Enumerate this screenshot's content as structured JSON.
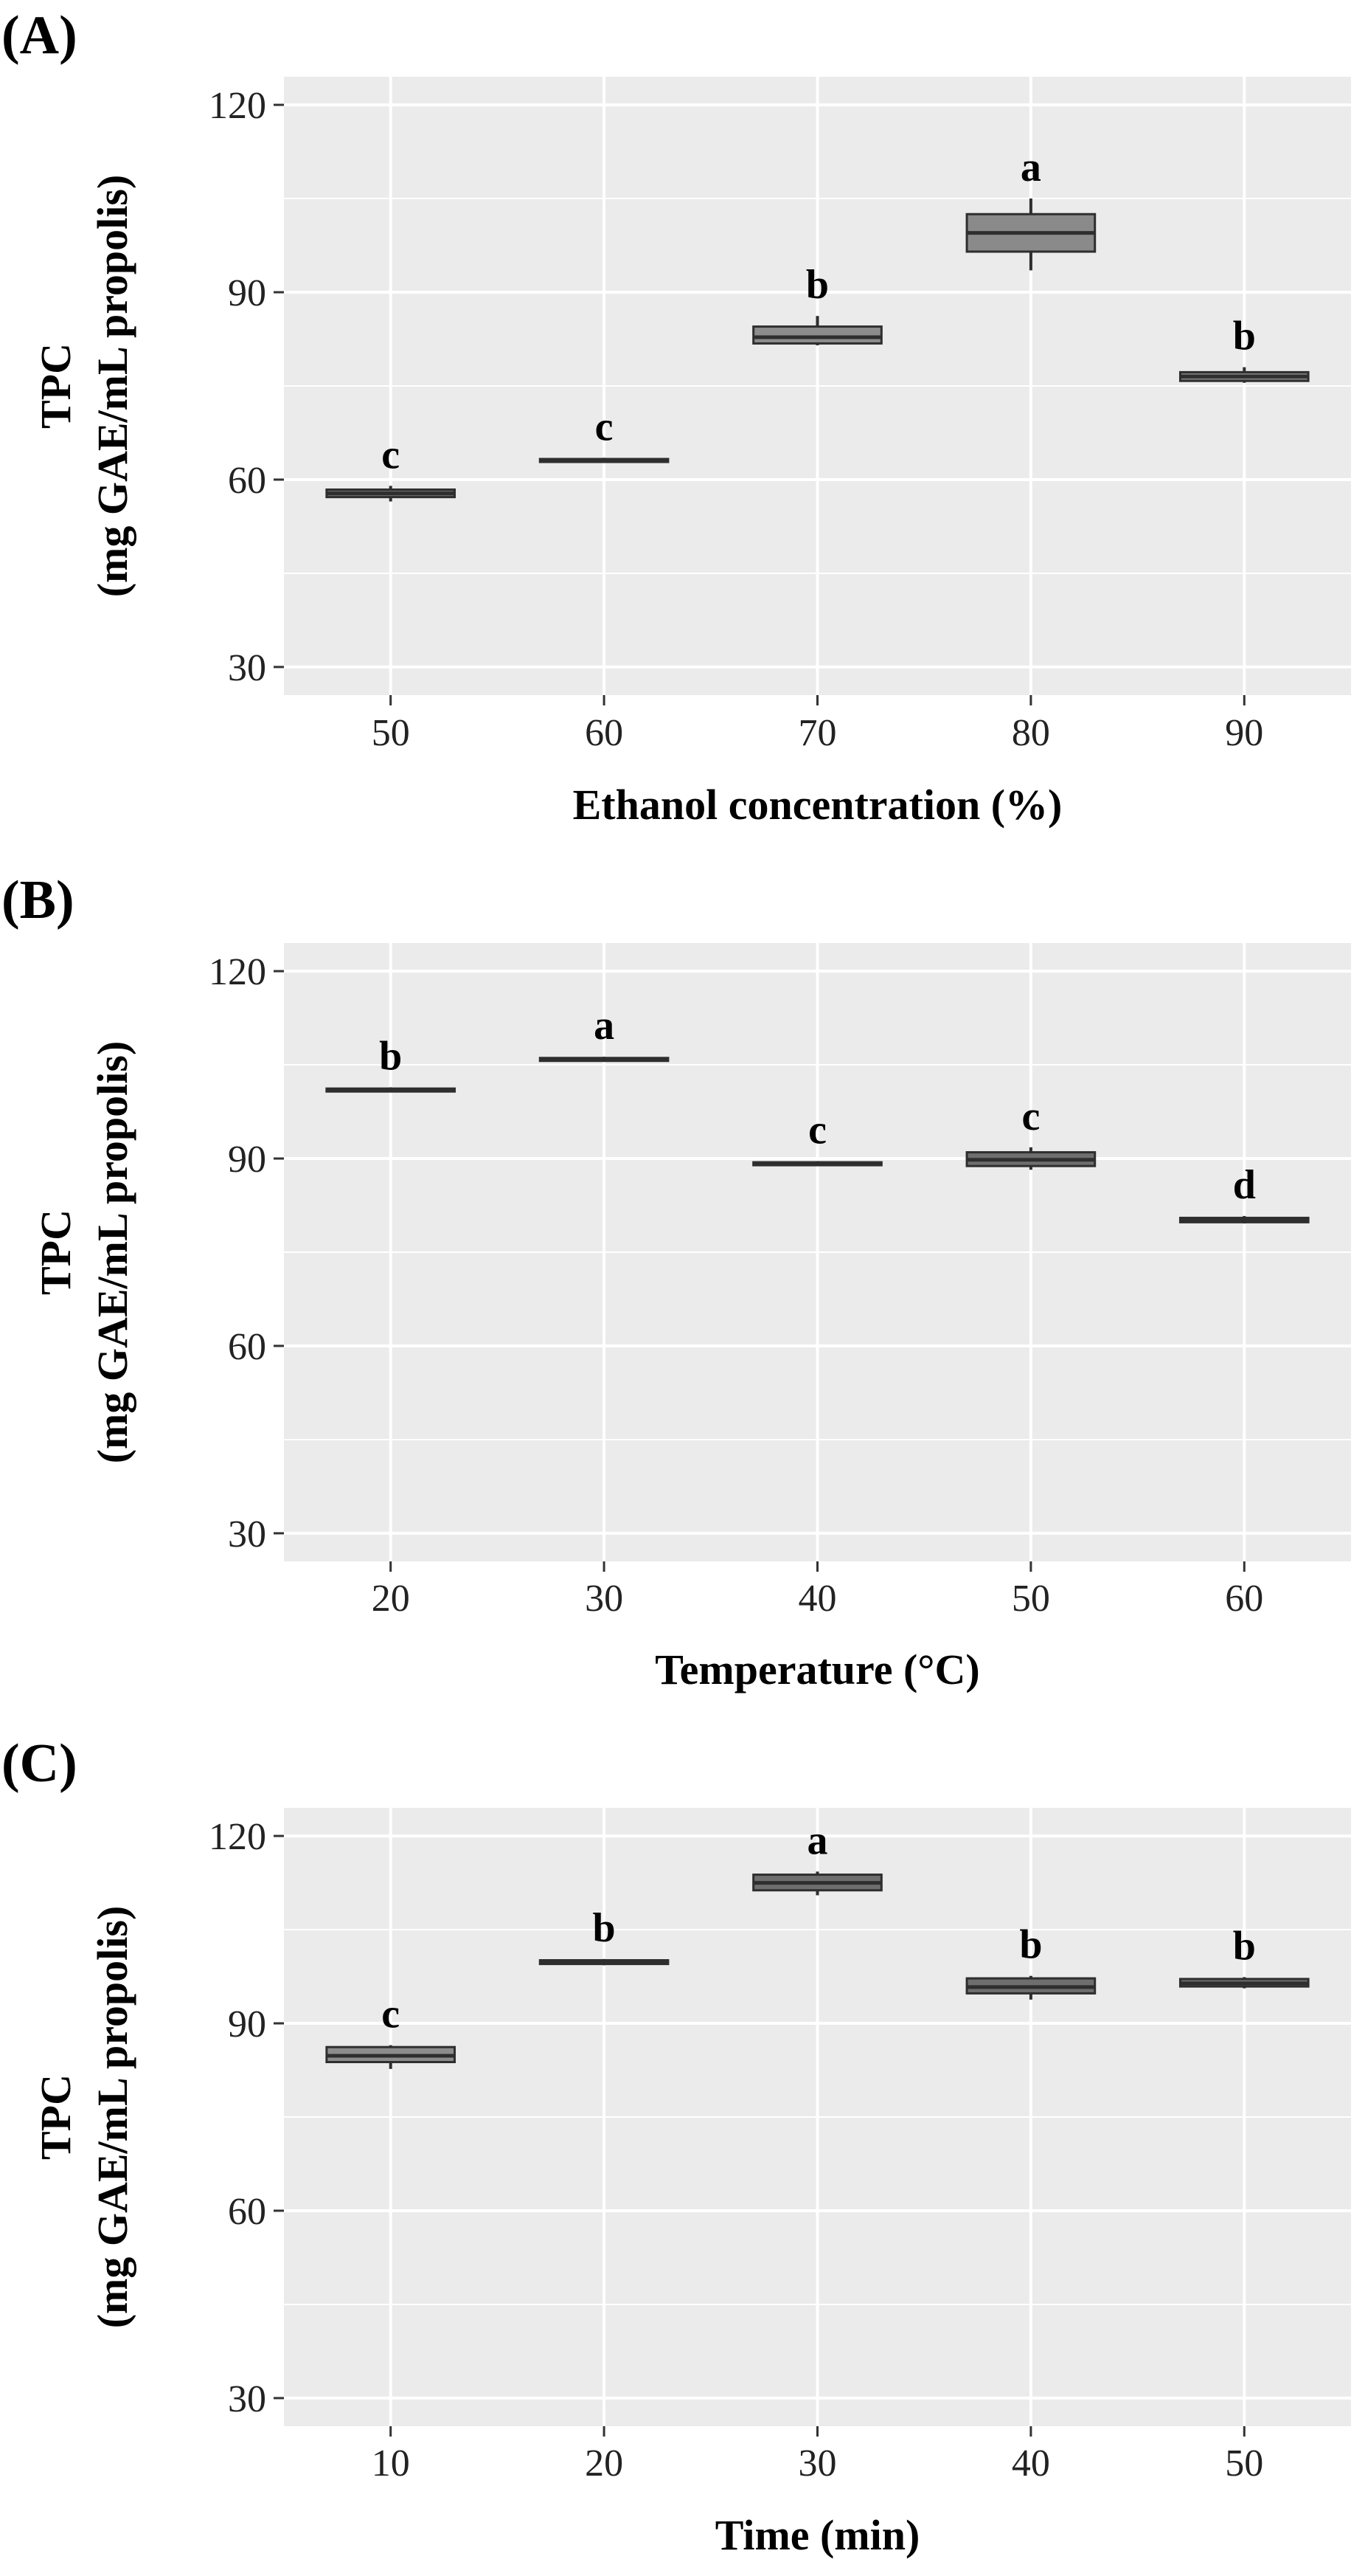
{
  "chart_data": [
    {
      "type": "box",
      "panel_label": "(A)",
      "title": "",
      "xlabel": "Ethanol concentration (%)",
      "ylabel_line1": "TPC",
      "ylabel_line2": "(mg GAE/mL propolis)",
      "ylim": [
        25.5,
        124.5
      ],
      "yticks": [
        30,
        60,
        90,
        120
      ],
      "ytick_labels": [
        "30",
        "60",
        "90",
        "120"
      ],
      "categories": [
        "50",
        "60",
        "70",
        "80",
        "90"
      ],
      "boxes": [
        {
          "min": 56.5,
          "q1": 57.2,
          "median": 57.8,
          "q3": 58.4,
          "max": 59.0,
          "letter": "c",
          "fill": "#6e6e6e"
        },
        {
          "min": 62.7,
          "q1": 62.9,
          "median": 63.1,
          "q3": 63.3,
          "max": 63.5,
          "letter": "c",
          "fill": "#5e5e5e"
        },
        {
          "min": 81.5,
          "q1": 81.8,
          "median": 82.8,
          "q3": 84.5,
          "max": 86.2,
          "letter": "b",
          "fill": "#8c8c8c"
        },
        {
          "min": 93.5,
          "q1": 96.5,
          "median": 99.5,
          "q3": 102.5,
          "max": 105.0,
          "letter": "a",
          "fill": "#8a8a8a"
        },
        {
          "min": 75.5,
          "q1": 75.8,
          "median": 76.5,
          "q3": 77.2,
          "max": 78.0,
          "letter": "b",
          "fill": "#7a7a7a"
        }
      ]
    },
    {
      "type": "box",
      "panel_label": "(B)",
      "title": "",
      "xlabel": "Temperature (°C)",
      "ylabel_line1": "TPC",
      "ylabel_line2": "(mg GAE/mL propolis)",
      "ylim": [
        25.5,
        124.5
      ],
      "yticks": [
        30,
        60,
        90,
        120
      ],
      "ytick_labels": [
        "30",
        "60",
        "90",
        "120"
      ],
      "categories": [
        "20",
        "30",
        "40",
        "50",
        "60"
      ],
      "boxes": [
        {
          "min": 100.6,
          "q1": 100.8,
          "median": 101.0,
          "q3": 101.2,
          "max": 101.4,
          "letter": "b",
          "fill": "#5e5e5e"
        },
        {
          "min": 105.5,
          "q1": 105.7,
          "median": 105.9,
          "q3": 106.1,
          "max": 106.3,
          "letter": "a",
          "fill": "#5e5e5e"
        },
        {
          "min": 88.8,
          "q1": 89.0,
          "median": 89.2,
          "q3": 89.4,
          "max": 89.6,
          "letter": "c",
          "fill": "#5e5e5e"
        },
        {
          "min": 88.2,
          "q1": 88.8,
          "median": 89.8,
          "q3": 91.0,
          "max": 91.8,
          "letter": "c",
          "fill": "#6e6e6e"
        },
        {
          "min": 79.6,
          "q1": 79.8,
          "median": 80.2,
          "q3": 80.5,
          "max": 80.8,
          "letter": "d",
          "fill": "#6e6e6e"
        }
      ]
    },
    {
      "type": "box",
      "panel_label": "(C)",
      "title": "",
      "xlabel": "Time (min)",
      "ylabel_line1": "TPC",
      "ylabel_line2": "(mg GAE/mL propolis)",
      "ylim": [
        25.5,
        124.5
      ],
      "yticks": [
        30,
        60,
        90,
        120
      ],
      "ytick_labels": [
        "30",
        "60",
        "90",
        "120"
      ],
      "categories": [
        "10",
        "20",
        "30",
        "40",
        "50"
      ],
      "boxes": [
        {
          "min": 82.7,
          "q1": 83.8,
          "median": 84.8,
          "q3": 86.2,
          "max": 86.5,
          "letter": "c",
          "fill": "#8c8c8c"
        },
        {
          "min": 99.3,
          "q1": 99.5,
          "median": 99.8,
          "q3": 100.1,
          "max": 100.3,
          "letter": "b",
          "fill": "#5e5e5e"
        },
        {
          "min": 110.5,
          "q1": 111.3,
          "median": 112.5,
          "q3": 113.8,
          "max": 114.3,
          "letter": "a",
          "fill": "#6e6e6e"
        },
        {
          "min": 93.8,
          "q1": 94.8,
          "median": 95.8,
          "q3": 97.2,
          "max": 97.6,
          "letter": "b",
          "fill": "#6e6e6e"
        },
        {
          "min": 95.6,
          "q1": 95.9,
          "median": 96.4,
          "q3": 97.1,
          "max": 97.4,
          "letter": "b",
          "fill": "#6e6e6e"
        }
      ]
    }
  ],
  "colors": {
    "panel_background": "#ebebeb",
    "gridline": "#ffffff",
    "box_outline": "#2e2e2e",
    "text": "#000000",
    "tick_text": "#222222"
  }
}
